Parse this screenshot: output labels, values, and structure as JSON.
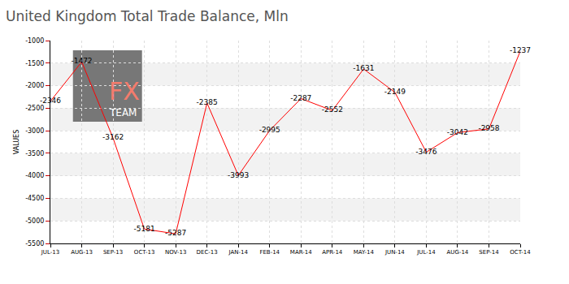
{
  "chart_data": {
    "type": "line",
    "title": "United Kingdom Total Trade Balance, Mln",
    "y_label": "VALUES",
    "annotations": [
      "FX",
      "TEAM"
    ],
    "categories": [
      "JUL-13",
      "AUG-13",
      "SEP-13",
      "OCT-13",
      "NOV-13",
      "DEC-13",
      "JAN-14",
      "FEB-14",
      "MAR-14",
      "APR-14",
      "MAY-14",
      "JUN-14",
      "JUL-14",
      "AUG-14",
      "SEP-14",
      "OCT-14"
    ],
    "values": [
      -2346,
      -1472,
      -3162,
      -5181,
      -5287,
      -2385,
      -3993,
      -2995,
      -2287,
      -2552,
      -1631,
      -2149,
      -3476,
      -3042,
      -2958,
      -1237
    ],
    "color": "#ff0000",
    "ylim": [
      -5500,
      -1000
    ],
    "yticks": [
      -5500,
      -5000,
      -4500,
      -4000,
      -3500,
      -3000,
      -2500,
      -2000,
      -1500,
      -1000
    ],
    "grid": true,
    "data_labels": true
  }
}
